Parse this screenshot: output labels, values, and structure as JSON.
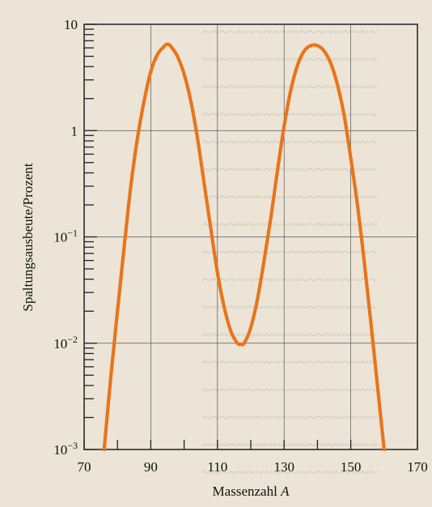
{
  "chart_data": {
    "type": "line",
    "title": "",
    "xlabel": "Massenzahl",
    "xlabel_symbol": "A",
    "ylabel": "Spaltungsausbeute/Prozent",
    "xlim": [
      70,
      170
    ],
    "ylim": [
      0.001,
      10
    ],
    "y_scale": "log",
    "grid": true,
    "x_ticks": [
      70,
      90,
      110,
      130,
      150,
      170
    ],
    "x_minor_ticks": [
      80,
      100,
      120,
      140,
      160
    ],
    "y_ticks": [
      {
        "value": 10,
        "base": "10",
        "exp": ""
      },
      {
        "value": 1,
        "base": "1",
        "exp": ""
      },
      {
        "value": 0.1,
        "base": "10",
        "exp": "−1"
      },
      {
        "value": 0.01,
        "base": "10",
        "exp": "−2"
      },
      {
        "value": 0.001,
        "base": "10",
        "exp": "−3"
      }
    ],
    "series": [
      {
        "color": "#e8751c",
        "x": [
          76,
          78,
          80,
          82,
          84,
          86,
          88,
          90,
          92,
          94,
          95,
          96,
          98,
          100,
          102,
          104,
          106,
          108,
          110,
          112,
          114,
          116,
          117,
          118,
          120,
          122,
          124,
          126,
          128,
          130,
          132,
          134,
          136,
          138,
          140,
          142,
          144,
          146,
          148,
          150,
          152,
          154,
          156,
          158,
          160
        ],
        "y": [
          0.001,
          0.0048,
          0.02,
          0.08,
          0.3,
          0.85,
          1.9,
          3.6,
          5.2,
          6.2,
          6.5,
          6.2,
          5.0,
          3.4,
          1.9,
          0.85,
          0.32,
          0.12,
          0.046,
          0.022,
          0.013,
          0.01,
          0.0098,
          0.01,
          0.014,
          0.026,
          0.06,
          0.15,
          0.42,
          1.1,
          2.4,
          4.1,
          5.6,
          6.3,
          6.3,
          5.6,
          4.3,
          2.7,
          1.4,
          0.55,
          0.2,
          0.06,
          0.016,
          0.004,
          0.001
        ]
      }
    ]
  }
}
